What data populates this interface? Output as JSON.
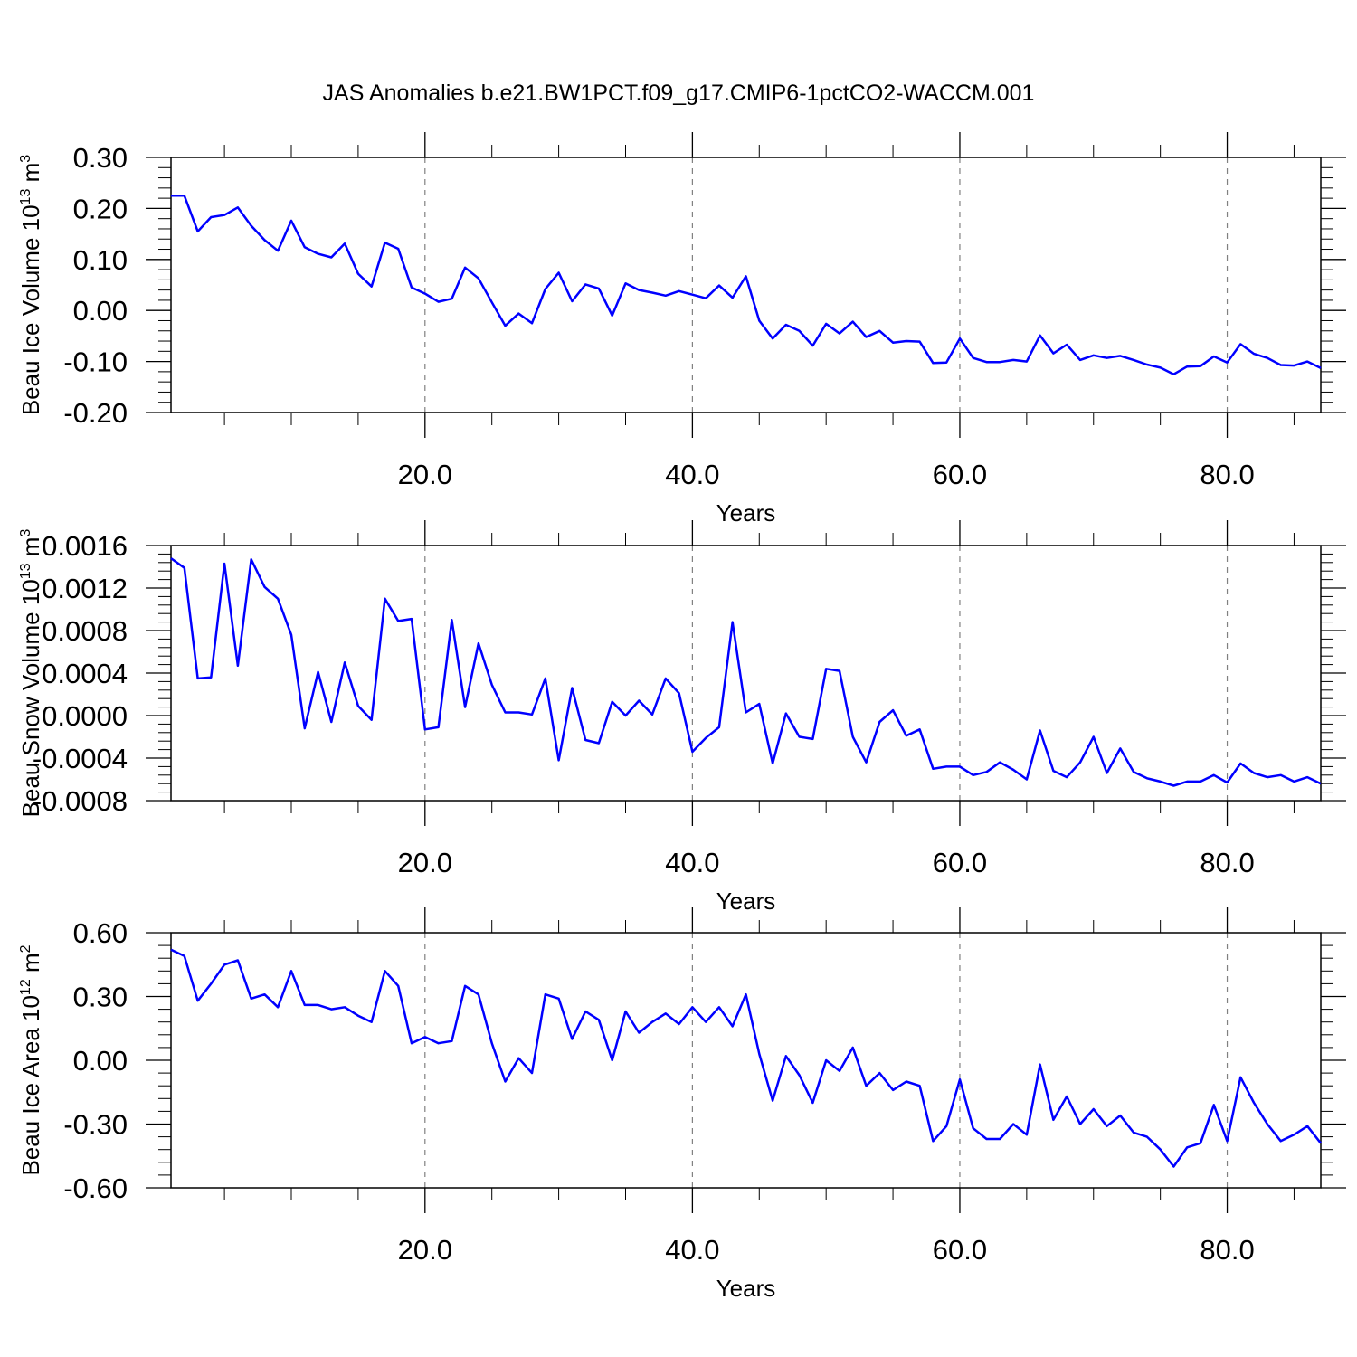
{
  "title": "JAS Anomalies b.e21.BW1PCT.f09_g17.CMIP6-1pctCO2-WACCM.001",
  "colors": {
    "line": "#0000ff",
    "axis": "#000000",
    "grid": "#808080"
  },
  "chart_data": [
    {
      "type": "line",
      "ylabel_main": "Beau Ice Volume 10",
      "ylabel_exp": "13",
      "ylabel_unit": " m",
      "ylabel_unit_exp": "3",
      "xlabel": "Years",
      "xlim": [
        1,
        87
      ],
      "ylim": [
        -0.2,
        0.3
      ],
      "yticks": [
        -0.2,
        -0.1,
        0.0,
        0.1,
        0.2,
        0.3
      ],
      "ytick_labels": [
        "-0.20",
        "-0.10",
        "0.00",
        "0.10",
        "0.20",
        "0.30"
      ],
      "xticks": [
        20,
        40,
        60,
        80
      ],
      "xtick_labels": [
        "20.0",
        "40.0",
        "60.0",
        "80.0"
      ],
      "grid_x": true,
      "series": [
        {
          "x": [
            1,
            2,
            3,
            4,
            5,
            6,
            7,
            8,
            9,
            10,
            11,
            12,
            13,
            14,
            15,
            16,
            17,
            18,
            19,
            20,
            21,
            22,
            23,
            24,
            25,
            26,
            27,
            28,
            29,
            30,
            31,
            32,
            33,
            34,
            35,
            36,
            37,
            38,
            39,
            40,
            41,
            42,
            43,
            44,
            45,
            46,
            47,
            48,
            49,
            50,
            51,
            52,
            53,
            54,
            55,
            56,
            57,
            58,
            59,
            60,
            61,
            62,
            63,
            64,
            65,
            66,
            67,
            68,
            69,
            70,
            71,
            72,
            73,
            74,
            75,
            76,
            77,
            78,
            79,
            80,
            81,
            82,
            83,
            84,
            85,
            86,
            87
          ],
          "values": [
            0.225,
            0.225,
            0.155,
            0.183,
            0.187,
            0.202,
            0.166,
            0.138,
            0.117,
            0.176,
            0.124,
            0.111,
            0.104,
            0.131,
            0.072,
            0.047,
            0.133,
            0.121,
            0.045,
            0.033,
            0.017,
            0.023,
            0.084,
            0.063,
            0.016,
            -0.03,
            -0.006,
            -0.025,
            0.042,
            0.074,
            0.018,
            0.051,
            0.043,
            -0.01,
            0.053,
            0.04,
            0.035,
            0.029,
            0.038,
            0.031,
            0.024,
            0.049,
            0.025,
            0.067,
            -0.02,
            -0.055,
            -0.028,
            -0.04,
            -0.069,
            -0.026,
            -0.045,
            -0.022,
            -0.052,
            -0.04,
            -0.063,
            -0.06,
            -0.061,
            -0.103,
            -0.102,
            -0.055,
            -0.093,
            -0.101,
            -0.101,
            -0.097,
            -0.1,
            -0.049,
            -0.084,
            -0.067,
            -0.097,
            -0.088,
            -0.093,
            -0.089,
            -0.097,
            -0.106,
            -0.112,
            -0.125,
            -0.11,
            -0.109,
            -0.09,
            -0.102,
            -0.066,
            -0.085,
            -0.093,
            -0.107,
            -0.108,
            -0.1,
            -0.113
          ]
        }
      ]
    },
    {
      "type": "line",
      "ylabel_main": "Beau Snow Volume 10",
      "ylabel_exp": "13",
      "ylabel_unit": " m",
      "ylabel_unit_exp": "3",
      "xlabel": "Years",
      "xlim": [
        1,
        87
      ],
      "ylim": [
        -0.0008,
        0.0016
      ],
      "yticks": [
        -0.0008,
        -0.0004,
        0.0,
        0.0004,
        0.0008,
        0.0012,
        0.0016
      ],
      "ytick_labels": [
        "-0.0008",
        "-0.0004",
        "0.0000",
        "0.0004",
        "0.0008",
        "0.0012",
        "0.0016"
      ],
      "xticks": [
        20,
        40,
        60,
        80
      ],
      "xtick_labels": [
        "20.0",
        "40.0",
        "60.0",
        "80.0"
      ],
      "grid_x": true,
      "series": [
        {
          "x": [
            1,
            2,
            3,
            4,
            5,
            6,
            7,
            8,
            9,
            10,
            11,
            12,
            13,
            14,
            15,
            16,
            17,
            18,
            19,
            20,
            21,
            22,
            23,
            24,
            25,
            26,
            27,
            28,
            29,
            30,
            31,
            32,
            33,
            34,
            35,
            36,
            37,
            38,
            39,
            40,
            41,
            42,
            43,
            44,
            45,
            46,
            47,
            48,
            49,
            50,
            51,
            52,
            53,
            54,
            55,
            56,
            57,
            58,
            59,
            60,
            61,
            62,
            63,
            64,
            65,
            66,
            67,
            68,
            69,
            70,
            71,
            72,
            73,
            74,
            75,
            76,
            77,
            78,
            79,
            80,
            81,
            82,
            83,
            84,
            85,
            86,
            87
          ],
          "values": [
            0.00148,
            0.00139,
            0.00035,
            0.00036,
            0.00143,
            0.00047,
            0.00147,
            0.00121,
            0.0011,
            0.00076,
            -0.00012,
            0.00041,
            -6e-05,
            0.0005,
            9e-05,
            -4e-05,
            0.0011,
            0.00089,
            0.00091,
            -0.00013,
            -0.00011,
            0.0009,
            8e-05,
            0.00068,
            0.00029,
            3e-05,
            3e-05,
            1e-05,
            0.00035,
            -0.00042,
            0.00026,
            -0.00023,
            -0.00026,
            0.00013,
            0.0,
            0.00014,
            1e-05,
            0.00035,
            0.00021,
            -0.00034,
            -0.00021,
            -0.00011,
            0.00088,
            3e-05,
            0.00011,
            -0.00045,
            2e-05,
            -0.0002,
            -0.00022,
            0.00044,
            0.00042,
            -0.0002,
            -0.00044,
            -6e-05,
            5e-05,
            -0.00019,
            -0.00013,
            -0.0005,
            -0.00048,
            -0.00048,
            -0.00056,
            -0.00053,
            -0.00044,
            -0.00051,
            -0.0006,
            -0.00014,
            -0.00052,
            -0.00058,
            -0.00044,
            -0.0002,
            -0.00054,
            -0.00031,
            -0.00053,
            -0.00059,
            -0.00062,
            -0.00066,
            -0.00062,
            -0.00062,
            -0.00056,
            -0.00063,
            -0.00045,
            -0.00054,
            -0.00058,
            -0.00056,
            -0.00062,
            -0.00058,
            -0.00064
          ]
        }
      ]
    },
    {
      "type": "line",
      "ylabel_main": "Beau Ice Area 10",
      "ylabel_exp": "12",
      "ylabel_unit": " m",
      "ylabel_unit_exp": "2",
      "xlabel": "Years",
      "xlim": [
        1,
        87
      ],
      "ylim": [
        -0.6,
        0.6
      ],
      "yticks": [
        -0.6,
        -0.3,
        0.0,
        0.3,
        0.6
      ],
      "ytick_labels": [
        "-0.60",
        "-0.30",
        "0.00",
        "0.30",
        "0.60"
      ],
      "xticks": [
        20,
        40,
        60,
        80
      ],
      "xtick_labels": [
        "20.0",
        "40.0",
        "60.0",
        "80.0"
      ],
      "grid_x": true,
      "series": [
        {
          "x": [
            1,
            2,
            3,
            4,
            5,
            6,
            7,
            8,
            9,
            10,
            11,
            12,
            13,
            14,
            15,
            16,
            17,
            18,
            19,
            20,
            21,
            22,
            23,
            24,
            25,
            26,
            27,
            28,
            29,
            30,
            31,
            32,
            33,
            34,
            35,
            36,
            37,
            38,
            39,
            40,
            41,
            42,
            43,
            44,
            45,
            46,
            47,
            48,
            49,
            50,
            51,
            52,
            53,
            54,
            55,
            56,
            57,
            58,
            59,
            60,
            61,
            62,
            63,
            64,
            65,
            66,
            67,
            68,
            69,
            70,
            71,
            72,
            73,
            74,
            75,
            76,
            77,
            78,
            79,
            80,
            81,
            82,
            83,
            84,
            85,
            86,
            87
          ],
          "values": [
            0.52,
            0.49,
            0.28,
            0.36,
            0.45,
            0.47,
            0.29,
            0.31,
            0.25,
            0.42,
            0.26,
            0.26,
            0.24,
            0.25,
            0.21,
            0.18,
            0.42,
            0.35,
            0.08,
            0.11,
            0.08,
            0.09,
            0.35,
            0.31,
            0.08,
            -0.1,
            0.01,
            -0.06,
            0.31,
            0.29,
            0.1,
            0.23,
            0.19,
            0.0,
            0.23,
            0.13,
            0.18,
            0.22,
            0.17,
            0.25,
            0.18,
            0.25,
            0.16,
            0.31,
            0.03,
            -0.19,
            0.02,
            -0.07,
            -0.2,
            0.0,
            -0.05,
            0.06,
            -0.12,
            -0.06,
            -0.14,
            -0.1,
            -0.12,
            -0.38,
            -0.31,
            -0.09,
            -0.32,
            -0.37,
            -0.37,
            -0.3,
            -0.35,
            -0.02,
            -0.28,
            -0.17,
            -0.3,
            -0.23,
            -0.31,
            -0.26,
            -0.34,
            -0.36,
            -0.42,
            -0.5,
            -0.41,
            -0.39,
            -0.21,
            -0.38,
            -0.08,
            -0.2,
            -0.3,
            -0.38,
            -0.35,
            -0.31,
            -0.39
          ]
        }
      ]
    }
  ]
}
